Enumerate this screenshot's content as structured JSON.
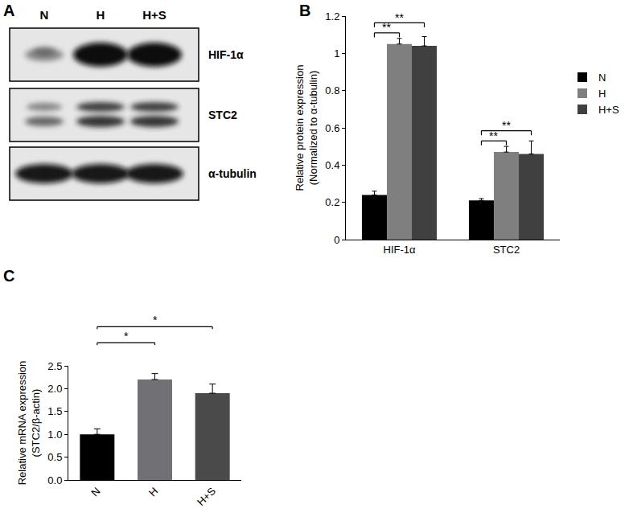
{
  "panel_a": {
    "label": "A",
    "lanes": [
      "N",
      "H",
      "H+S"
    ],
    "rows": [
      "HIF-1α",
      "STC2",
      "α-tubulin"
    ]
  },
  "chart_data": [
    {
      "type": "bar",
      "title": "B",
      "categories": [
        "HIF-1α",
        "STC2"
      ],
      "series": [
        {
          "name": "N",
          "color": "#000000",
          "values": [
            0.24,
            0.21
          ],
          "errors": [
            0.02,
            0.01
          ]
        },
        {
          "name": "H",
          "color": "#7f7f7f",
          "values": [
            1.05,
            0.47
          ],
          "errors": [
            0.03,
            0.03
          ]
        },
        {
          "name": "H+S",
          "color": "#404040",
          "values": [
            1.04,
            0.46
          ],
          "errors": [
            0.05,
            0.07
          ]
        }
      ],
      "ylabel": [
        "Relative protein expression",
        "(Normalized to α-tubulin)"
      ],
      "ylim": [
        0,
        1.2
      ],
      "yticks": [
        0,
        0.2,
        0.4,
        0.6,
        0.8,
        1,
        1.2
      ],
      "legend": "right",
      "annotations": [
        {
          "category": "HIF-1α",
          "from": "N",
          "to": "H",
          "label": "**"
        },
        {
          "category": "HIF-1α",
          "from": "N",
          "to": "H+S",
          "label": "**"
        },
        {
          "category": "STC2",
          "from": "N",
          "to": "H",
          "label": "**"
        },
        {
          "category": "STC2",
          "from": "N",
          "to": "H+S",
          "label": "**"
        }
      ]
    },
    {
      "type": "bar",
      "title": "C",
      "categories": [
        "N",
        "H",
        "H+S"
      ],
      "values": [
        1.0,
        2.2,
        1.9
      ],
      "errors": [
        0.12,
        0.13,
        0.2
      ],
      "colors": [
        "#000000",
        "#707075",
        "#4a4a4a"
      ],
      "ylabel": [
        "Relative mRNA expression",
        "(STC2/β-actin)"
      ],
      "ylim": [
        0,
        2.5
      ],
      "yticks": [
        {
          "value": 0,
          "label": "0.0"
        },
        0.5,
        {
          "value": 1,
          "label": "1.0"
        },
        1.5,
        {
          "value": 2,
          "label": "2.0"
        },
        2.5
      ],
      "annotations": [
        {
          "from": "N",
          "to": "H",
          "label": "*"
        },
        {
          "from": "N",
          "to": "H+S",
          "label": "*"
        }
      ]
    }
  ]
}
